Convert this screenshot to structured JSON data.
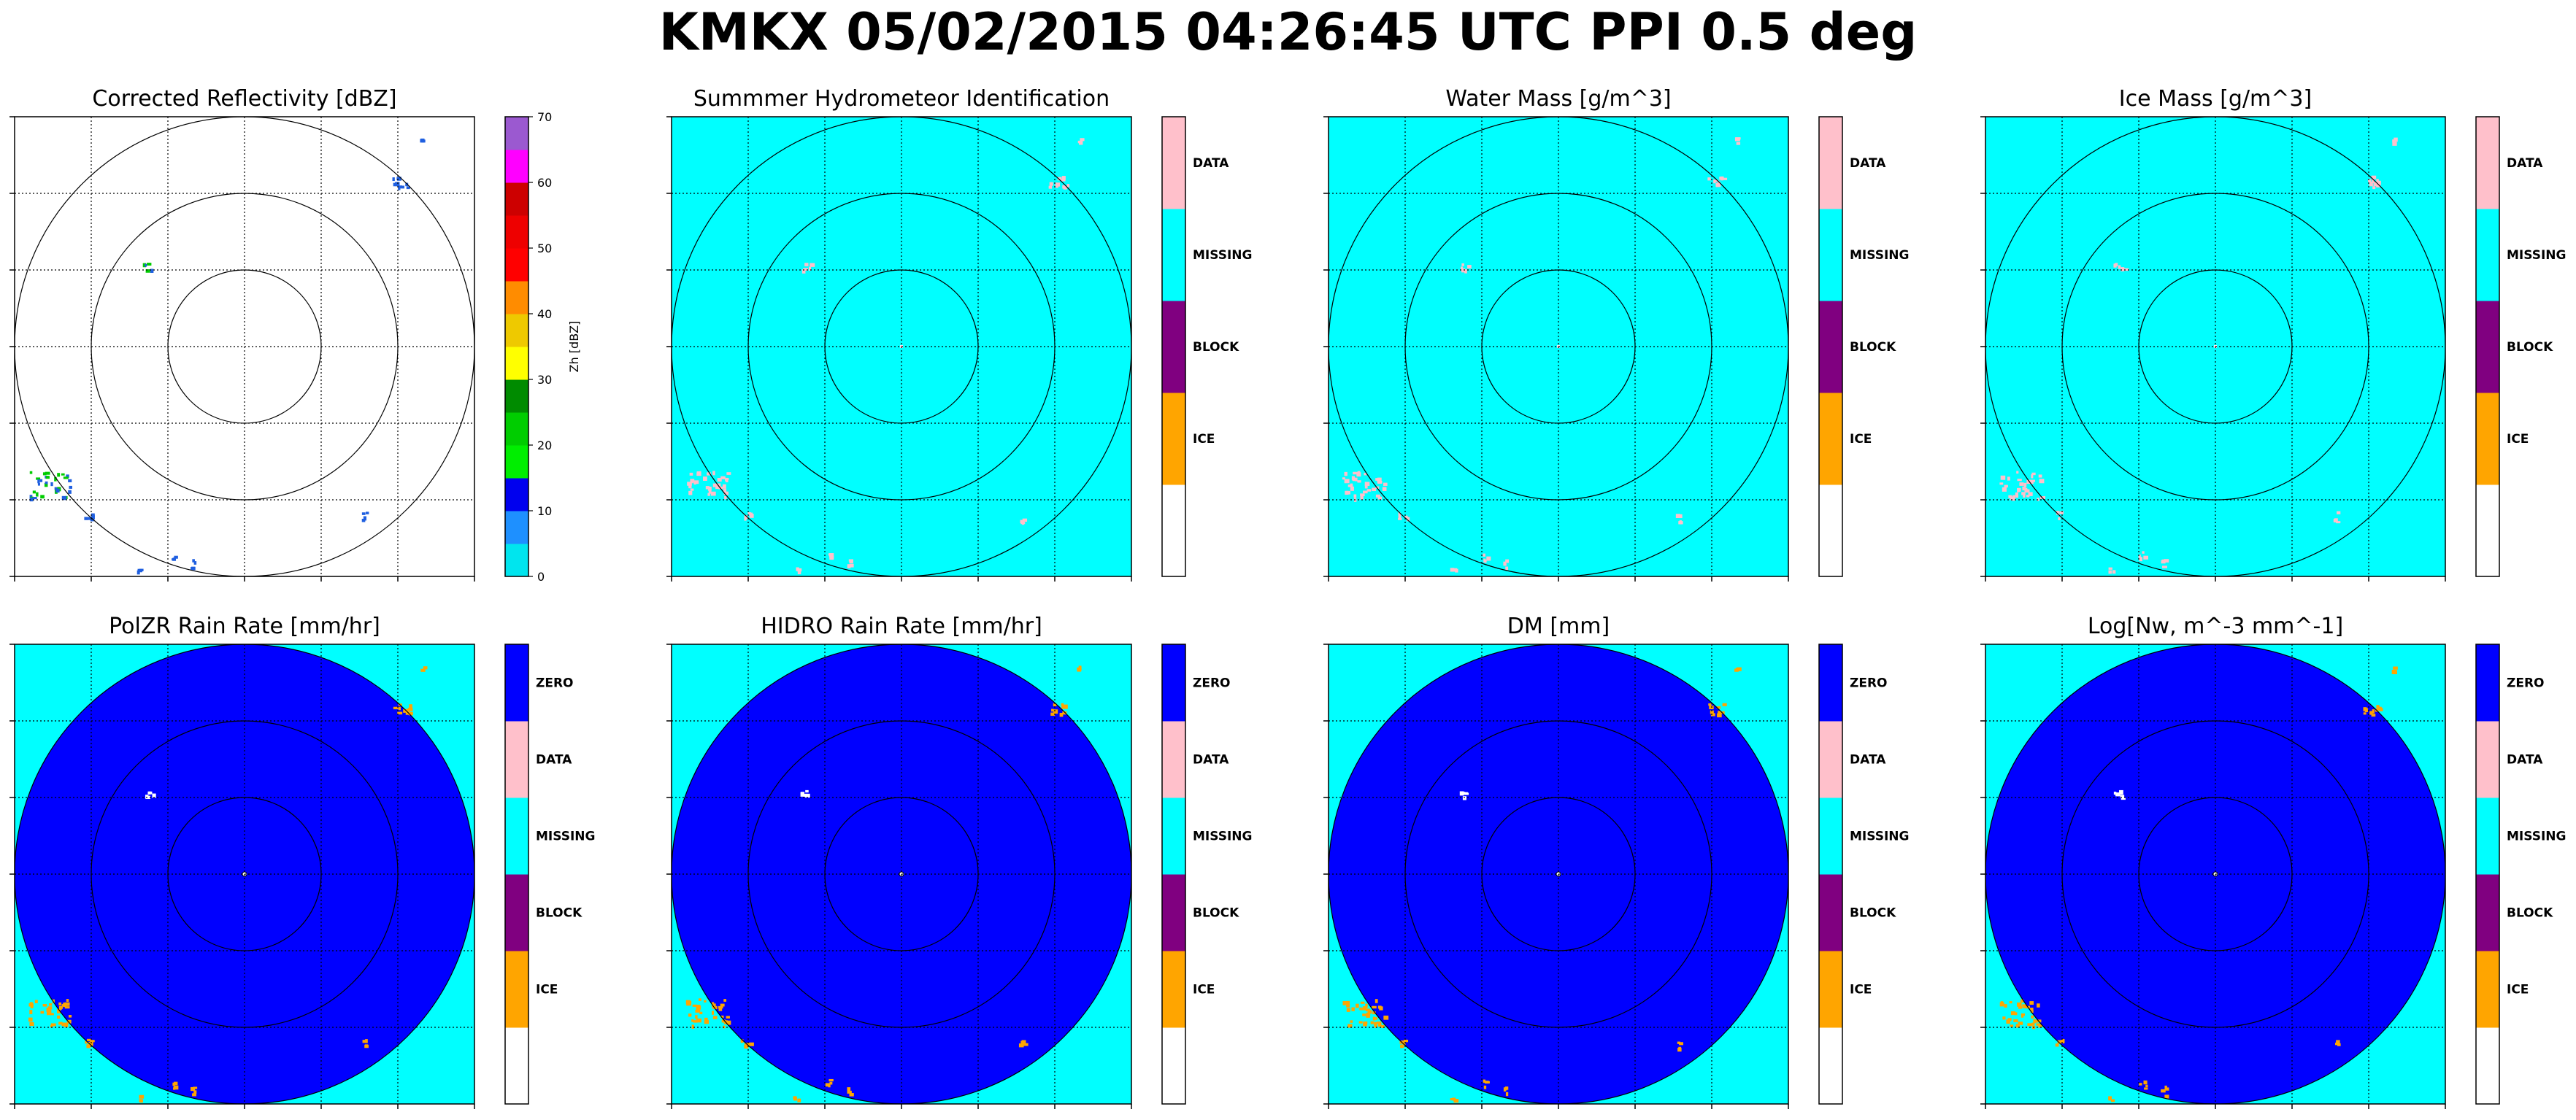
{
  "suptitle": "KMKX 05/02/2015 04:26:45 UTC PPI 0.5 deg",
  "colors": {
    "background_cyan": "#00ffff",
    "disk_blue": "#0000ff",
    "data_pink": "#ffc0cb",
    "block_purple": "#800080",
    "ice_orange": "#ffa500",
    "white": "#ffffff",
    "ring": "#000000",
    "grid": "#000000"
  },
  "chart_data": [
    {
      "type": "heatmap",
      "title": "Corrected Reflectivity [dBZ]",
      "colorbar": {
        "kind": "continuous",
        "label": "Zh [dBZ]",
        "ticks": [
          "0",
          "10",
          "20",
          "30",
          "40",
          "50",
          "60",
          "70"
        ],
        "range": [
          0,
          70
        ],
        "bins": [
          {
            "from": 0,
            "to": 5,
            "color": "#00e5ee"
          },
          {
            "from": 5,
            "to": 10,
            "color": "#1e90ff"
          },
          {
            "from": 10,
            "to": 15,
            "color": "#0000ee"
          },
          {
            "from": 15,
            "to": 20,
            "color": "#00ee00"
          },
          {
            "from": 20,
            "to": 25,
            "color": "#00cd00"
          },
          {
            "from": 25,
            "to": 30,
            "color": "#008b00"
          },
          {
            "from": 30,
            "to": 35,
            "color": "#ffff00"
          },
          {
            "from": 35,
            "to": 40,
            "color": "#eec900"
          },
          {
            "from": 40,
            "to": 45,
            "color": "#ff8c00"
          },
          {
            "from": 45,
            "to": 50,
            "color": "#ff0000"
          },
          {
            "from": 50,
            "to": 55,
            "color": "#ee0000"
          },
          {
            "from": 55,
            "to": 60,
            "color": "#cd0000"
          },
          {
            "from": 60,
            "to": 65,
            "color": "#ff00ff"
          },
          {
            "from": 65,
            "to": 70,
            "color": "#9b59d0"
          }
        ]
      },
      "background": "white",
      "disk": false,
      "echo_color": "#1f5fe0",
      "echo_accent": "#00cc00"
    },
    {
      "type": "heatmap",
      "title": "Summmer Hydrometeor Identification",
      "colorbar": {
        "kind": "categorical",
        "categories": [
          "ICE",
          "BLOCK",
          "MISSING",
          "DATA"
        ],
        "bottom_blank": true,
        "colors": [
          "#ffa500",
          "#800080",
          "#00ffff",
          "#ffc0cb"
        ]
      },
      "background": "cyan",
      "disk": false,
      "echo_color": "#ffc0cb"
    },
    {
      "type": "heatmap",
      "title": "Water Mass [g/m^3]",
      "colorbar": {
        "kind": "categorical",
        "categories": [
          "ICE",
          "BLOCK",
          "MISSING",
          "DATA"
        ],
        "bottom_blank": true,
        "colors": [
          "#ffa500",
          "#800080",
          "#00ffff",
          "#ffc0cb"
        ]
      },
      "background": "cyan",
      "disk": false,
      "echo_color": "#ffc0cb"
    },
    {
      "type": "heatmap",
      "title": "Ice Mass [g/m^3]",
      "colorbar": {
        "kind": "categorical",
        "categories": [
          "ICE",
          "BLOCK",
          "MISSING",
          "DATA"
        ],
        "bottom_blank": true,
        "colors": [
          "#ffa500",
          "#800080",
          "#00ffff",
          "#ffc0cb"
        ]
      },
      "background": "cyan",
      "disk": false,
      "echo_color": "#ffc0cb"
    },
    {
      "type": "heatmap",
      "title": "PolZR Rain Rate [mm/hr]",
      "colorbar": {
        "kind": "categorical",
        "categories": [
          "ICE",
          "BLOCK",
          "MISSING",
          "DATA",
          "ZERO"
        ],
        "bottom_blank": true,
        "colors": [
          "#ffa500",
          "#800080",
          "#00ffff",
          "#ffc0cb",
          "#0000ff"
        ]
      },
      "background": "cyan",
      "disk": true,
      "echo_color": "#ffa500"
    },
    {
      "type": "heatmap",
      "title": "HIDRO Rain Rate [mm/hr]",
      "colorbar": {
        "kind": "categorical",
        "categories": [
          "ICE",
          "BLOCK",
          "MISSING",
          "DATA",
          "ZERO"
        ],
        "bottom_blank": true,
        "colors": [
          "#ffa500",
          "#800080",
          "#00ffff",
          "#ffc0cb",
          "#0000ff"
        ]
      },
      "background": "cyan",
      "disk": true,
      "echo_color": "#ffa500"
    },
    {
      "type": "heatmap",
      "title": "DM [mm]",
      "colorbar": {
        "kind": "categorical",
        "categories": [
          "ICE",
          "BLOCK",
          "MISSING",
          "DATA",
          "ZERO"
        ],
        "bottom_blank": true,
        "colors": [
          "#ffa500",
          "#800080",
          "#00ffff",
          "#ffc0cb",
          "#0000ff"
        ]
      },
      "background": "cyan",
      "disk": true,
      "echo_color": "#ffa500"
    },
    {
      "type": "heatmap",
      "title": "Log[Nw, m^-3 mm^-1]",
      "colorbar": {
        "kind": "categorical",
        "categories": [
          "ICE",
          "BLOCK",
          "MISSING",
          "DATA",
          "ZERO"
        ],
        "bottom_blank": true,
        "colors": [
          "#ffa500",
          "#800080",
          "#00ffff",
          "#ffc0cb",
          "#0000ff"
        ]
      },
      "background": "cyan",
      "disk": true,
      "echo_color": "#ffa500"
    }
  ]
}
